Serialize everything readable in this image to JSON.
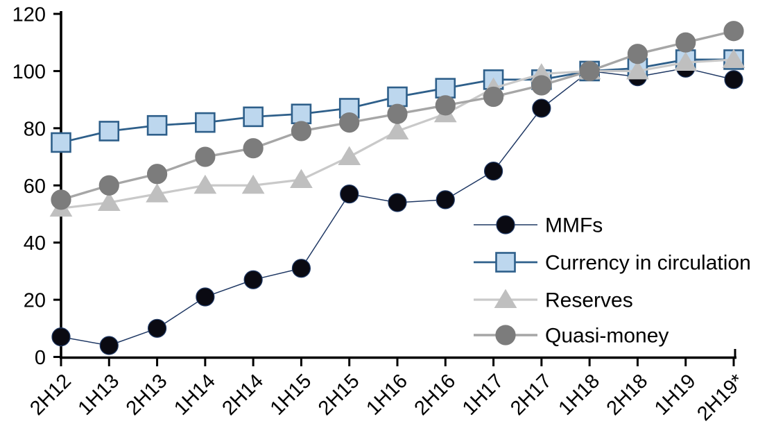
{
  "chart_data": {
    "type": "line",
    "title": "",
    "xlabel": "",
    "ylabel": "",
    "background_color": "#FFFFFF",
    "axis_color": "#000000",
    "grid": false,
    "ylim": [
      0,
      120
    ],
    "yticks": [
      0,
      20,
      40,
      60,
      80,
      100,
      120
    ],
    "x_label_rotation_deg": 45,
    "legend_position": "inside-right",
    "categories": [
      "2H12",
      "1H13",
      "2H13",
      "1H14",
      "2H14",
      "1H15",
      "2H15",
      "1H16",
      "2H16",
      "1H17",
      "2H17",
      "1H18",
      "2H18",
      "1H19",
      "2H19*"
    ],
    "series": [
      {
        "id": "mmfs",
        "name": "MMFs",
        "marker": "circle",
        "marker_fill": "#0A0A12",
        "marker_edge": "#1F3864",
        "marker_radius": 13,
        "line_color": "#1F3864",
        "line_width": 1.5,
        "values": [
          7,
          4,
          10,
          21,
          27,
          31,
          57,
          54,
          55,
          65,
          87,
          100,
          98,
          101,
          97
        ]
      },
      {
        "id": "currency",
        "name": "Currency in circulation",
        "marker": "square",
        "marker_fill": "#BDD7EE",
        "marker_edge": "#2E5F8A",
        "marker_size": 27,
        "line_color": "#2E5F8A",
        "line_width": 2.8,
        "values": [
          75,
          79,
          81,
          82,
          84,
          85,
          87,
          91,
          94,
          97,
          97,
          100,
          101,
          104,
          104
        ]
      },
      {
        "id": "reserves",
        "name": "Reserves",
        "marker": "triangle",
        "marker_fill": "#BFBFBF",
        "marker_edge": "#BFBFBF",
        "line_color": "#C9C9C9",
        "line_width": 3.2,
        "values": [
          52,
          54,
          57,
          60,
          60,
          62,
          70,
          79,
          85,
          94,
          99,
          100,
          100,
          103,
          104
        ]
      },
      {
        "id": "quasi",
        "name": "Quasi-money",
        "marker": "circle",
        "marker_fill": "#7C7C7C",
        "marker_edge": "#7C7C7C",
        "marker_radius": 14,
        "line_color": "#A6A6A6",
        "line_width": 3.4,
        "values": [
          55,
          60,
          64,
          70,
          73,
          79,
          82,
          85,
          88,
          91,
          95,
          100,
          106,
          110,
          114
        ]
      }
    ]
  }
}
